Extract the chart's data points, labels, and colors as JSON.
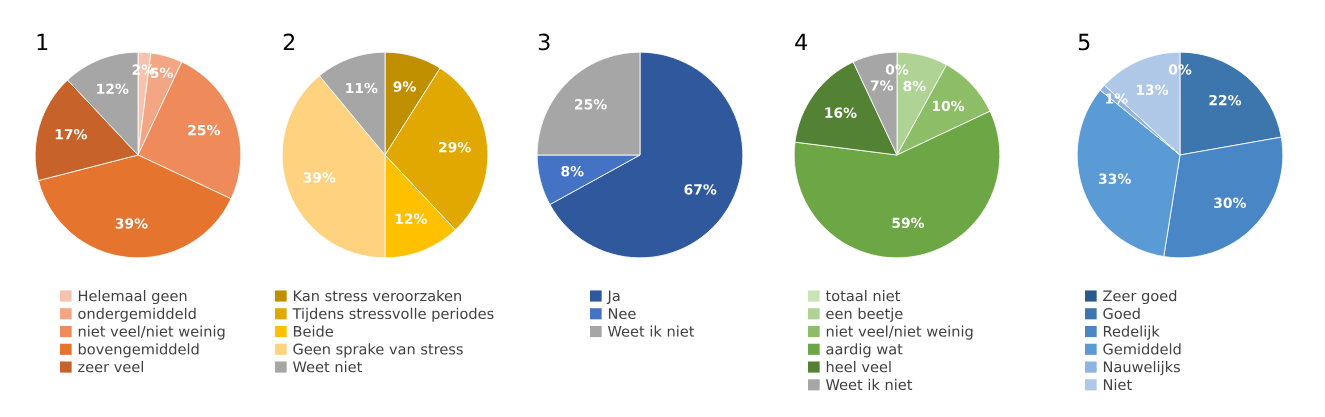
{
  "chart_data": [
    {
      "type": "pie",
      "title": "1",
      "categories": [
        "Helemaal geen",
        "ondergemiddeld",
        "niet veel/niet weinig",
        "bovengemiddeld",
        "zeer veel",
        null
      ],
      "values": [
        2,
        5,
        25,
        39,
        17,
        12
      ],
      "value_labels": [
        "2%",
        "5%",
        "25%",
        "39%",
        "17%",
        "12%"
      ],
      "colors": [
        "#f6c3b0",
        "#f2a683",
        "#ef8a5a",
        "#e5742f",
        "#c6622a",
        "#a6a6a6"
      ],
      "legend": "bottom"
    },
    {
      "type": "pie",
      "title": "2",
      "categories": [
        "Kan stress veroorzaken",
        "Tijdens stressvolle periodes",
        "Beide",
        "Geen sprake van stress",
        "Weet niet"
      ],
      "values": [
        9,
        29,
        12,
        39,
        11
      ],
      "value_labels": [
        "9%",
        "29%",
        "12%",
        "39%",
        "11%"
      ],
      "colors": [
        "#bf8f00",
        "#e0a800",
        "#ffc000",
        "#ffd27f",
        "#a6a6a6"
      ],
      "legend": "bottom"
    },
    {
      "type": "pie",
      "title": "3",
      "categories": [
        "Ja",
        "Nee",
        "Weet ik niet"
      ],
      "values": [
        67,
        8,
        25
      ],
      "value_labels": [
        "67%",
        "8%",
        "25%"
      ],
      "colors": [
        "#30589c",
        "#4472c4",
        "#a6a6a6"
      ],
      "legend": "bottom"
    },
    {
      "type": "pie",
      "title": "4",
      "categories": [
        "totaal niet",
        "een beetje",
        "niet veel/niet weinig",
        "aardig wat",
        "heel veel",
        "Weet ik niet"
      ],
      "values": [
        0,
        8,
        10,
        59,
        16,
        7
      ],
      "value_labels": [
        "0%",
        "8%",
        "10%",
        "59%",
        "16%",
        "7%"
      ],
      "colors": [
        "#c9e2b8",
        "#aed394",
        "#8dbd66",
        "#6da644",
        "#548235",
        "#a6a6a6"
      ],
      "legend": "bottom"
    },
    {
      "type": "pie",
      "title": "5",
      "categories": [
        "Zeer goed",
        "Goed",
        "Redelijk",
        "Gemiddeld",
        "Nauwelijks",
        "Niet"
      ],
      "values": [
        0,
        22,
        30,
        33,
        1,
        13
      ],
      "value_labels": [
        "0%",
        "22%",
        "30%",
        "33%",
        "1%",
        "13%"
      ],
      "colors": [
        "#2a5a8c",
        "#3d75ad",
        "#4886c6",
        "#5b9bd5",
        "#8db4e2",
        "#b0c8e8"
      ],
      "legend": "bottom"
    }
  ]
}
